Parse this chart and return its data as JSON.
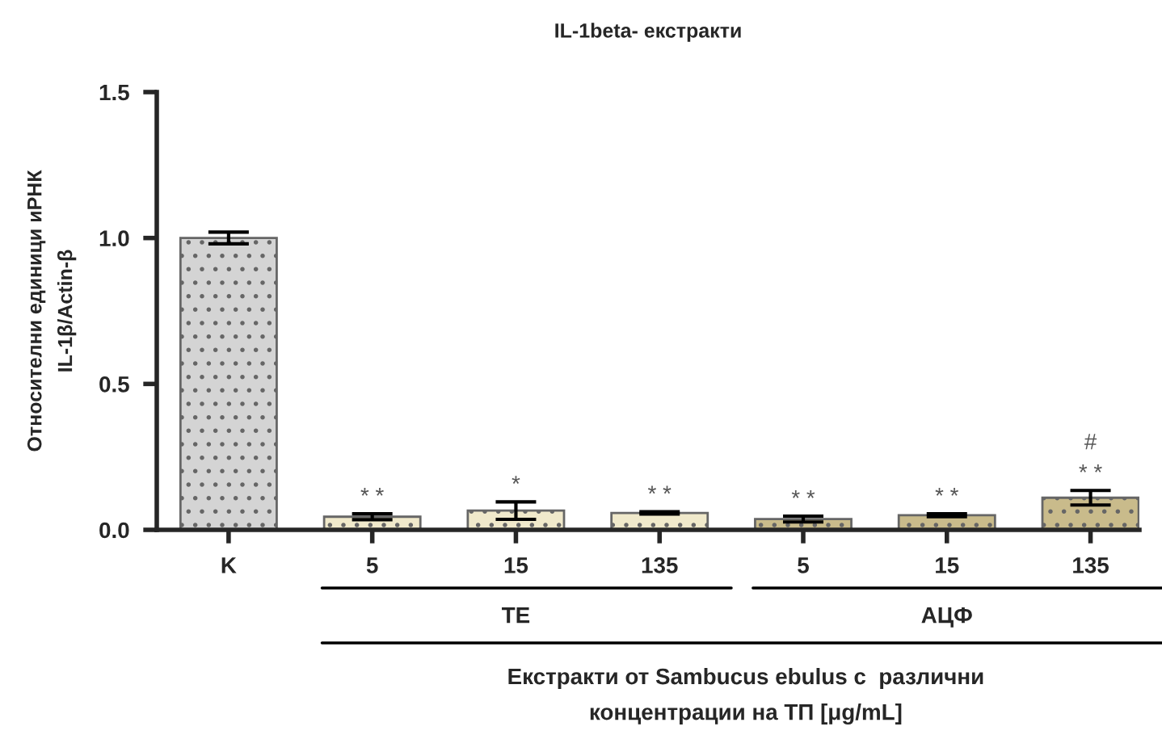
{
  "chart_data": {
    "type": "bar",
    "title": "IL-1beta- екстракти",
    "ylabel": "Относителни единици иРНК\nIL-1β/Actin-β",
    "xlabel": "Екстракти от Sambucus ebulus с  различни\nконцентрации на ТП [μg/mL]",
    "categories": [
      "K",
      "5",
      "15",
      "135",
      "5",
      "15",
      "135"
    ],
    "values": [
      1.0,
      0.045,
      0.066,
      0.058,
      0.037,
      0.05,
      0.11
    ],
    "errors": [
      0.02,
      0.01,
      0.03,
      0.004,
      0.01,
      0.005,
      0.025
    ],
    "colors": [
      "#d4d4d4",
      "#f0e9cb",
      "#f0e9cb",
      "#f0e9cb",
      "#c9bb8b",
      "#c9bb8b",
      "#c9bb8b"
    ],
    "value_labels": [
      null,
      "* *",
      "*",
      "* *",
      "* *",
      "* *",
      "#\n* *"
    ],
    "annotations": [
      "TE",
      "АЦФ"
    ],
    "ylim": [
      0,
      1.5
    ],
    "yticks": [
      {
        "value": 0,
        "label": "0.0"
      },
      {
        "value": 0.5,
        "label": "0.5"
      },
      {
        "value": 1.0,
        "label": "1.0"
      },
      {
        "value": 1.5,
        "label": "1.5"
      }
    ],
    "grid": false,
    "legend": false
  }
}
